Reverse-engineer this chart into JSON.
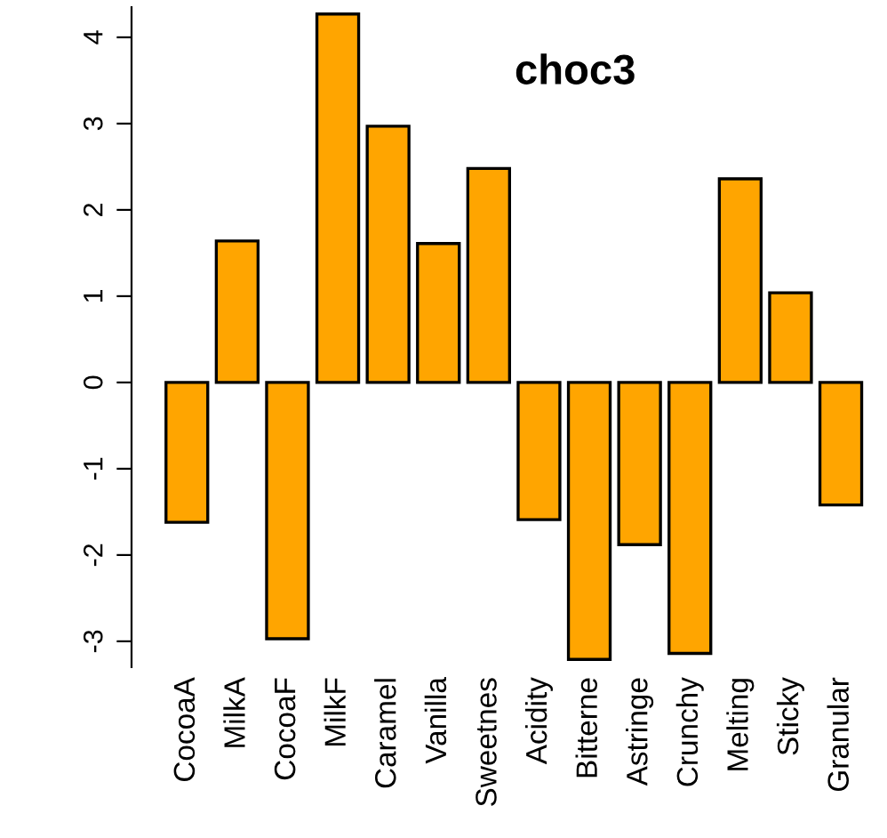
{
  "chart_data": {
    "type": "bar",
    "title": "choc3",
    "categories": [
      "CocoaA",
      "MilkA",
      "CocoaF",
      "MilkF",
      "Caramel",
      "Vanilla",
      "Sweetnes",
      "Acidity",
      "Bitterne",
      "Astringe",
      "Crunchy",
      "Melting",
      "Sticky",
      "Granular"
    ],
    "values": [
      -1.62,
      1.64,
      -2.97,
      4.27,
      2.97,
      1.61,
      2.48,
      -1.59,
      -3.21,
      -1.88,
      -3.14,
      2.36,
      1.04,
      -1.42
    ],
    "color": "#ffa500",
    "ylim": [
      -3.3,
      4.35
    ],
    "yticks": [
      -3,
      -2,
      -1,
      0,
      1,
      2,
      3,
      4
    ],
    "grid": false
  }
}
